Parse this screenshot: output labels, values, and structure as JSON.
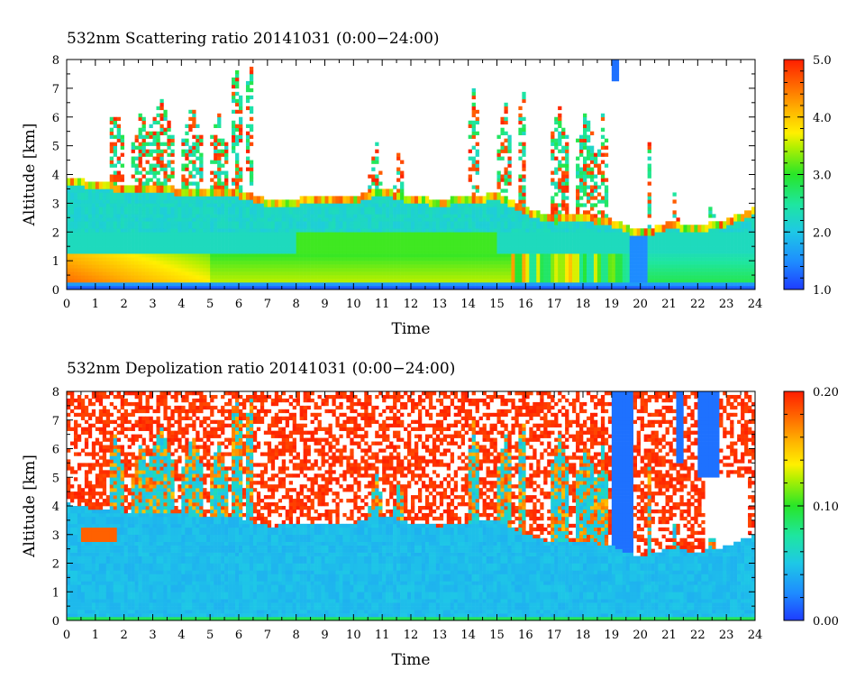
{
  "chart_data": [
    {
      "type": "heatmap",
      "title": "532nm Scattering ratio  20141031 (0:00−24:00)",
      "xlabel": "Time",
      "ylabel": "Altitude [km]",
      "x_ticks": [
        "0",
        "1",
        "2",
        "3",
        "4",
        "5",
        "6",
        "7",
        "8",
        "9",
        "10",
        "11",
        "12",
        "13",
        "14",
        "15",
        "16",
        "17",
        "18",
        "19",
        "20",
        "21",
        "22",
        "23",
        "24"
      ],
      "y_ticks": [
        "0",
        "1",
        "2",
        "3",
        "4",
        "5",
        "6",
        "7",
        "8"
      ],
      "xlim": [
        0,
        24
      ],
      "ylim": [
        0,
        8
      ],
      "colorbar": {
        "range": [
          1.0,
          5.0
        ],
        "tick_values": [
          1.0,
          2.0,
          3.0,
          4.0,
          5.0
        ],
        "tick_labels": [
          "1.0",
          "2.0",
          "3.0",
          "4.0",
          "5.0"
        ]
      }
    },
    {
      "type": "heatmap",
      "title": "532nm Depolization ratio  20141031 (0:00−24:00)",
      "xlabel": "Time",
      "ylabel": "Altitude [km]",
      "x_ticks": [
        "0",
        "1",
        "2",
        "3",
        "4",
        "5",
        "6",
        "7",
        "8",
        "9",
        "10",
        "11",
        "12",
        "13",
        "14",
        "15",
        "16",
        "17",
        "18",
        "19",
        "20",
        "21",
        "22",
        "23",
        "24"
      ],
      "y_ticks": [
        "0",
        "1",
        "2",
        "3",
        "4",
        "5",
        "6",
        "7",
        "8"
      ],
      "xlim": [
        0,
        24
      ],
      "ylim": [
        0,
        8
      ],
      "colorbar": {
        "range": [
          0.0,
          0.2
        ],
        "tick_values": [
          0.0,
          0.1,
          0.2
        ],
        "tick_labels": [
          "0.00",
          "0.10",
          "0.20"
        ]
      }
    }
  ]
}
